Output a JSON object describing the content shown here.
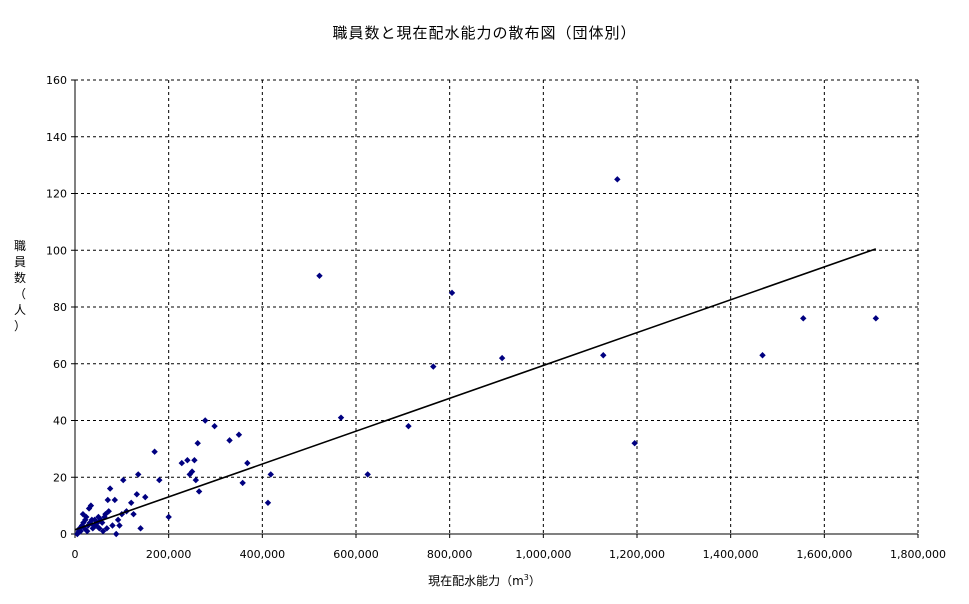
{
  "chart_data": {
    "type": "scatter",
    "title": "職員数と現在配水能力の散布図（団体別）",
    "xlabel": "現在配水能力（m",
    "xlabel_sup": "3",
    "xlabel_close": "）",
    "ylabel": "職員数（人）",
    "xlim": [
      0,
      1800000
    ],
    "ylim": [
      0,
      160
    ],
    "x_ticks": [
      0,
      200000,
      400000,
      600000,
      800000,
      1000000,
      1200000,
      1400000,
      1600000,
      1800000
    ],
    "x_tick_labels": [
      "0",
      "200,000",
      "400,000",
      "600,000",
      "800,000",
      "1,000,000",
      "1,200,000",
      "1,400,000",
      "1,600,000",
      "1,800,000"
    ],
    "y_ticks": [
      0,
      20,
      40,
      60,
      80,
      100,
      120,
      140,
      160
    ],
    "y_tick_labels": [
      "0",
      "20",
      "40",
      "60",
      "80",
      "100",
      "120",
      "140",
      "160"
    ],
    "grid": true,
    "marker_color": "#000080",
    "trendline": {
      "x": [
        0,
        1710000
      ],
      "y": [
        1.5,
        100.5
      ],
      "color": "#000000"
    },
    "points": [
      {
        "x": 5000,
        "y": 0
      },
      {
        "x": 8000,
        "y": 1
      },
      {
        "x": 10000,
        "y": 2
      },
      {
        "x": 12000,
        "y": 1
      },
      {
        "x": 15000,
        "y": 3
      },
      {
        "x": 17000,
        "y": 7
      },
      {
        "x": 18000,
        "y": 4
      },
      {
        "x": 20000,
        "y": 2
      },
      {
        "x": 22000,
        "y": 5
      },
      {
        "x": 24000,
        "y": 6
      },
      {
        "x": 26000,
        "y": 1
      },
      {
        "x": 28000,
        "y": 3
      },
      {
        "x": 30000,
        "y": 9
      },
      {
        "x": 32000,
        "y": 4
      },
      {
        "x": 34000,
        "y": 10
      },
      {
        "x": 36000,
        "y": 5
      },
      {
        "x": 38000,
        "y": 2
      },
      {
        "x": 40000,
        "y": 3
      },
      {
        "x": 42000,
        "y": 5
      },
      {
        "x": 45000,
        "y": 3
      },
      {
        "x": 48000,
        "y": 4
      },
      {
        "x": 50000,
        "y": 6
      },
      {
        "x": 52000,
        "y": 2
      },
      {
        "x": 55000,
        "y": 5
      },
      {
        "x": 58000,
        "y": 4
      },
      {
        "x": 60000,
        "y": 1
      },
      {
        "x": 63000,
        "y": 6
      },
      {
        "x": 65000,
        "y": 7
      },
      {
        "x": 68000,
        "y": 2
      },
      {
        "x": 70000,
        "y": 12
      },
      {
        "x": 72000,
        "y": 8
      },
      {
        "x": 75000,
        "y": 16
      },
      {
        "x": 80000,
        "y": 3
      },
      {
        "x": 85000,
        "y": 12
      },
      {
        "x": 88000,
        "y": 0
      },
      {
        "x": 92000,
        "y": 5
      },
      {
        "x": 95000,
        "y": 3
      },
      {
        "x": 100000,
        "y": 7
      },
      {
        "x": 103000,
        "y": 19
      },
      {
        "x": 110000,
        "y": 8
      },
      {
        "x": 120000,
        "y": 11
      },
      {
        "x": 125000,
        "y": 7
      },
      {
        "x": 132000,
        "y": 14
      },
      {
        "x": 135000,
        "y": 21
      },
      {
        "x": 140000,
        "y": 2
      },
      {
        "x": 150000,
        "y": 13
      },
      {
        "x": 170000,
        "y": 29
      },
      {
        "x": 180000,
        "y": 19
      },
      {
        "x": 200000,
        "y": 6
      },
      {
        "x": 228000,
        "y": 25
      },
      {
        "x": 240000,
        "y": 26
      },
      {
        "x": 245000,
        "y": 21
      },
      {
        "x": 250000,
        "y": 22
      },
      {
        "x": 255000,
        "y": 26
      },
      {
        "x": 258000,
        "y": 19
      },
      {
        "x": 262000,
        "y": 32
      },
      {
        "x": 265000,
        "y": 15
      },
      {
        "x": 278000,
        "y": 40
      },
      {
        "x": 298000,
        "y": 38
      },
      {
        "x": 330000,
        "y": 33
      },
      {
        "x": 350000,
        "y": 35
      },
      {
        "x": 358000,
        "y": 18
      },
      {
        "x": 368000,
        "y": 25
      },
      {
        "x": 412000,
        "y": 11
      },
      {
        "x": 418000,
        "y": 21
      },
      {
        "x": 522000,
        "y": 91
      },
      {
        "x": 568000,
        "y": 41
      },
      {
        "x": 625000,
        "y": 21
      },
      {
        "x": 712000,
        "y": 38
      },
      {
        "x": 765000,
        "y": 59
      },
      {
        "x": 805000,
        "y": 85
      },
      {
        "x": 912000,
        "y": 62
      },
      {
        "x": 1128000,
        "y": 63
      },
      {
        "x": 1158000,
        "y": 125
      },
      {
        "x": 1195000,
        "y": 32
      },
      {
        "x": 1468000,
        "y": 63
      },
      {
        "x": 1555000,
        "y": 76
      },
      {
        "x": 1710000,
        "y": 76
      }
    ]
  }
}
